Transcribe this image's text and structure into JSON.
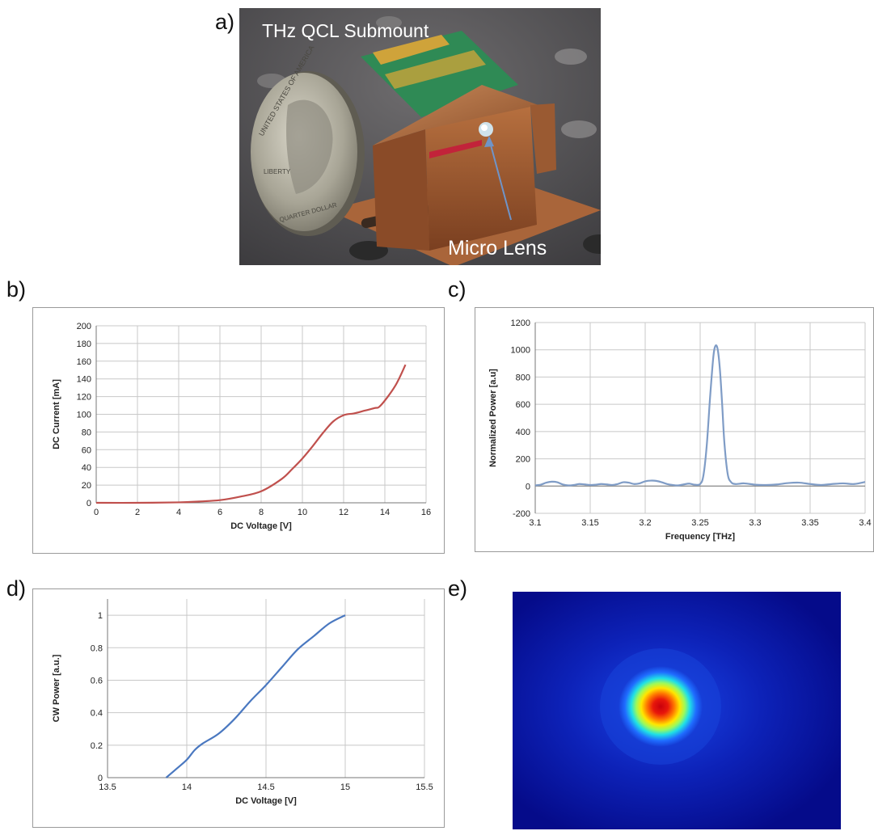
{
  "panels": {
    "a": {
      "label": "a)",
      "photo_title": "THz QCL Submount",
      "annotation": "Micro Lens",
      "coin_text": "UNITED STATES OF AMERICA",
      "coin_text2": "QUARTER DOLLAR",
      "coin_text3": "LIBERTY"
    },
    "b": {
      "label": "b)"
    },
    "c": {
      "label": "c)"
    },
    "d": {
      "label": "d)"
    },
    "e": {
      "label": "e)"
    }
  },
  "colors": {
    "curve_b": "#c0504d",
    "curve_c": "#7f9cc6",
    "curve_d": "#4a78c0",
    "grid": "#c8c8c8"
  },
  "chart_data": [
    {
      "id": "b",
      "type": "line",
      "xlabel": "DC Voltage  [V]",
      "ylabel": "DC Current [mA]",
      "xlim": [
        0,
        16
      ],
      "ylim": [
        0,
        200
      ],
      "xticks": [
        0,
        2,
        4,
        6,
        8,
        10,
        12,
        14,
        16
      ],
      "yticks": [
        0,
        20,
        40,
        60,
        80,
        100,
        120,
        140,
        160,
        180,
        200
      ],
      "grid": true,
      "series": [
        {
          "x": [
            0,
            2,
            4,
            5,
            6,
            7,
            8,
            9,
            9.5,
            10,
            10.5,
            11,
            11.5,
            12,
            12.5,
            13,
            13.5,
            13.8,
            14.5,
            15
          ],
          "y": [
            0,
            0,
            0.5,
            1.5,
            3,
            7,
            13,
            27,
            38,
            50,
            64,
            79,
            92,
            99,
            101,
            104,
            107,
            110,
            132,
            156
          ]
        }
      ]
    },
    {
      "id": "c",
      "type": "line",
      "xlabel": "Frequency [THz]",
      "ylabel": "Normalized Power [a.u]",
      "xlim": [
        3.1,
        3.4
      ],
      "ylim": [
        -200,
        1200
      ],
      "xticks": [
        3.1,
        3.15,
        3.2,
        3.25,
        3.3,
        3.35,
        3.4
      ],
      "yticks": [
        -200,
        0,
        200,
        400,
        600,
        800,
        1000,
        1200
      ],
      "grid": true,
      "series": [
        {
          "x": [
            3.1,
            3.105,
            3.11,
            3.115,
            3.12,
            3.125,
            3.13,
            3.135,
            3.14,
            3.145,
            3.15,
            3.155,
            3.16,
            3.165,
            3.17,
            3.175,
            3.18,
            3.185,
            3.19,
            3.195,
            3.2,
            3.205,
            3.21,
            3.215,
            3.22,
            3.225,
            3.23,
            3.235,
            3.24,
            3.245,
            3.25,
            3.253,
            3.256,
            3.259,
            3.262,
            3.264,
            3.266,
            3.268,
            3.27,
            3.272,
            3.275,
            3.278,
            3.282,
            3.29,
            3.3,
            3.31,
            3.32,
            3.33,
            3.34,
            3.35,
            3.36,
            3.37,
            3.38,
            3.39,
            3.4
          ],
          "y": [
            5,
            10,
            25,
            32,
            28,
            12,
            5,
            8,
            15,
            12,
            8,
            10,
            15,
            12,
            8,
            15,
            28,
            25,
            15,
            20,
            35,
            40,
            38,
            28,
            15,
            8,
            5,
            12,
            18,
            10,
            15,
            80,
            300,
            650,
            950,
            1030,
            1000,
            850,
            600,
            320,
            90,
            30,
            15,
            20,
            10,
            8,
            12,
            22,
            25,
            15,
            8,
            15,
            20,
            15,
            30
          ]
        }
      ]
    },
    {
      "id": "d",
      "type": "line",
      "xlabel": "DC Voltage [V]",
      "ylabel": "CW Power [a.u.]",
      "xlim": [
        13.5,
        15.5
      ],
      "ylim": [
        0,
        1.1
      ],
      "xticks": [
        13.5,
        14,
        14.5,
        15,
        15.5
      ],
      "yticks": [
        0,
        0.2,
        0.4,
        0.6,
        0.8,
        1
      ],
      "grid": true,
      "series": [
        {
          "x": [
            13.87,
            13.93,
            14.0,
            14.05,
            14.1,
            14.2,
            14.3,
            14.4,
            14.5,
            14.6,
            14.7,
            14.8,
            14.9,
            15.0
          ],
          "y": [
            0,
            0.05,
            0.11,
            0.17,
            0.21,
            0.27,
            0.36,
            0.47,
            0.57,
            0.68,
            0.79,
            0.87,
            0.95,
            1.0
          ]
        }
      ]
    }
  ]
}
